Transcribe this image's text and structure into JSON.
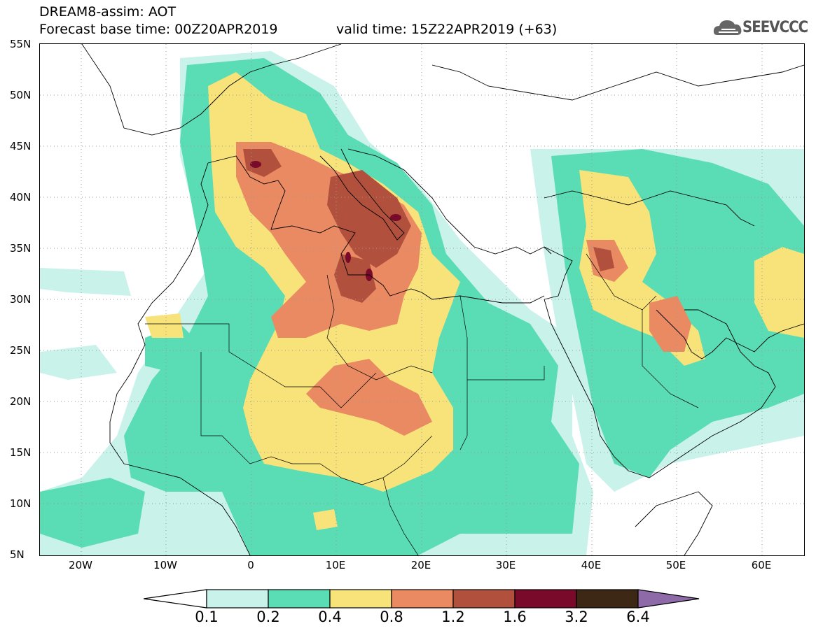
{
  "header": {
    "title_line1": "DREAM8-assim: AOT",
    "title_line2": "Forecast base time: 00Z20APR2019",
    "valid_time": "valid time: 15Z22APR2019 (+63)",
    "logo_text": "SEEVCCC",
    "logo_icon": "cloud-icon"
  },
  "map": {
    "lat_labels": [
      "55N",
      "50N",
      "45N",
      "40N",
      "35N",
      "30N",
      "25N",
      "20N",
      "15N",
      "10N",
      "5N"
    ],
    "lon_labels": [
      "20W",
      "10W",
      "0",
      "10E",
      "20E",
      "30E",
      "40E",
      "50E",
      "60E"
    ]
  },
  "colorbar": {
    "labels": [
      "0.1",
      "0.2",
      "0.4",
      "0.8",
      "1.2",
      "1.6",
      "3.2",
      "6.4"
    ],
    "colors": [
      "#ffffff",
      "#c8f2ea",
      "#5adcb4",
      "#f7e37a",
      "#ea8a62",
      "#b2503e",
      "#7a0a2a",
      "#3d2816",
      "#8f6aa8"
    ]
  },
  "colors": {
    "c01": "#c8f2ea",
    "c02": "#5adcb4",
    "c04": "#f7e37a",
    "c08": "#ea8a62",
    "c12": "#b2503e",
    "c16": "#7a0a2a"
  }
}
